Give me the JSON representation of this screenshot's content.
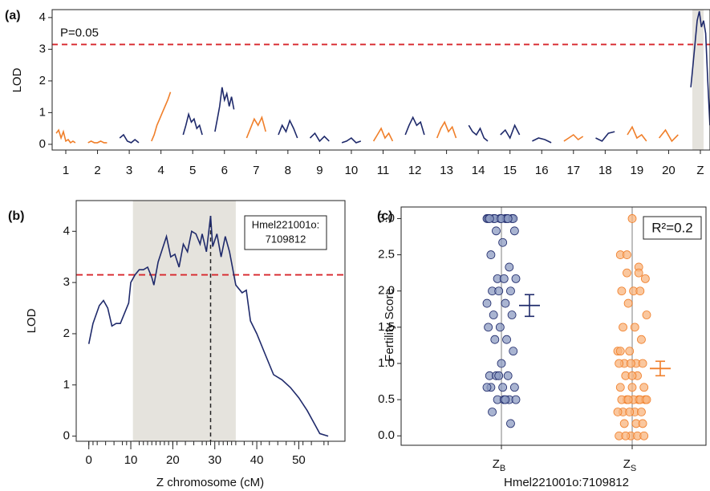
{
  "chart_data": [
    {
      "type": "genome-line",
      "panel": "(a)",
      "y_label": "LOD",
      "threshold": 3.15,
      "threshold_label": "P=0.05",
      "ylim": [
        -0.18,
        4.25
      ],
      "yticks": [
        0,
        1,
        2,
        3,
        4
      ],
      "chromosomes": [
        {
          "label": "1",
          "color": "#f07f2a",
          "values": [
            0.35,
            0.45,
            0.2,
            0.4,
            0.1,
            0.15,
            0.05,
            0.1,
            0.05
          ]
        },
        {
          "label": "2",
          "color": "#f07f2a",
          "values": [
            0.05,
            0.1,
            0.05,
            0.05,
            0.1,
            0.05,
            0.05
          ]
        },
        {
          "label": "3",
          "color": "#1f2a6b",
          "values": [
            0.2,
            0.3,
            0.1,
            0.05,
            0.15,
            0.05
          ]
        },
        {
          "label": "4",
          "color": "#f07f2a",
          "values": [
            0.1,
            0.3,
            0.6,
            0.8,
            1.0,
            1.2,
            1.4,
            1.65
          ]
        },
        {
          "label": "5",
          "color": "#1f2a6b",
          "values": [
            0.3,
            0.6,
            0.95,
            0.7,
            0.8,
            0.5,
            0.6,
            0.3
          ]
        },
        {
          "label": "6",
          "color": "#1f2a6b",
          "values": [
            0.4,
            0.8,
            1.2,
            1.8,
            1.4,
            1.6,
            1.2,
            1.5,
            1.1
          ]
        },
        {
          "label": "7",
          "color": "#f07f2a",
          "values": [
            0.2,
            0.5,
            0.8,
            0.6,
            0.85,
            0.4
          ]
        },
        {
          "label": "8",
          "color": "#1f2a6b",
          "values": [
            0.3,
            0.6,
            0.4,
            0.75,
            0.5,
            0.2
          ]
        },
        {
          "label": "9",
          "color": "#1f2a6b",
          "values": [
            0.2,
            0.35,
            0.1,
            0.25,
            0.1
          ]
        },
        {
          "label": "10",
          "color": "#1f2a6b",
          "values": [
            0.05,
            0.1,
            0.2,
            0.05,
            0.1
          ]
        },
        {
          "label": "11",
          "color": "#f07f2a",
          "values": [
            0.1,
            0.3,
            0.5,
            0.2,
            0.35,
            0.1
          ]
        },
        {
          "label": "12",
          "color": "#1f2a6b",
          "values": [
            0.3,
            0.6,
            0.85,
            0.6,
            0.7,
            0.3
          ]
        },
        {
          "label": "13",
          "color": "#f07f2a",
          "values": [
            0.2,
            0.5,
            0.7,
            0.4,
            0.55,
            0.2
          ]
        },
        {
          "label": "14",
          "color": "#1f2a6b",
          "values": [
            0.6,
            0.4,
            0.3,
            0.5,
            0.2,
            0.1
          ]
        },
        {
          "label": "15",
          "color": "#1f2a6b",
          "values": [
            0.3,
            0.45,
            0.2,
            0.6,
            0.3
          ]
        },
        {
          "label": "16",
          "color": "#1f2a6b",
          "values": [
            0.1,
            0.2,
            0.15,
            0.05
          ]
        },
        {
          "label": "17",
          "color": "#f07f2a",
          "values": [
            0.1,
            0.2,
            0.3,
            0.15,
            0.25
          ]
        },
        {
          "label": "18",
          "color": "#1f2a6b",
          "values": [
            0.2,
            0.1,
            0.35,
            0.4
          ]
        },
        {
          "label": "19",
          "color": "#f07f2a",
          "values": [
            0.3,
            0.55,
            0.2,
            0.3,
            0.1
          ]
        },
        {
          "label": "20",
          "color": "#f07f2a",
          "values": [
            0.2,
            0.45,
            0.1,
            0.3
          ]
        },
        {
          "label": "Z",
          "color": "#1f2a6b",
          "values": [
            1.8,
            2.5,
            3.2,
            3.9,
            4.2,
            3.7,
            3.9,
            3.5,
            2.0,
            0.6
          ]
        }
      ]
    },
    {
      "type": "line",
      "panel": "(b)",
      "x_label": "Z chromosome (cM)",
      "y_label": "LOD",
      "color": "#1f2a6b",
      "threshold": 3.15,
      "interval": [
        10.5,
        35
      ],
      "marker_x": 29,
      "marker_label": [
        "Hmel221001o:",
        "7109812"
      ],
      "xlim": [
        -3,
        61
      ],
      "xticks": [
        0,
        10,
        20,
        30,
        40,
        50
      ],
      "ylim": [
        -0.1,
        4.6
      ],
      "yticks": [
        0,
        1,
        2,
        3,
        4
      ],
      "rug": [
        0,
        1,
        2,
        4,
        6,
        8,
        9,
        10,
        12,
        13,
        14,
        15,
        16,
        17,
        18,
        19,
        20,
        21,
        23,
        25,
        27,
        28,
        29,
        31,
        32,
        33,
        34,
        35,
        37,
        39,
        41,
        43,
        45,
        47,
        49,
        51,
        53,
        56,
        57
      ],
      "x": [
        0,
        1,
        2.5,
        3.5,
        4.5,
        5.5,
        6.5,
        7.5,
        8.5,
        9.5,
        10,
        11,
        12,
        13,
        14,
        15,
        15.5,
        16.5,
        17.5,
        18.5,
        19.5,
        20.5,
        21.5,
        22.5,
        23.5,
        24.5,
        25.5,
        26.5,
        27,
        28,
        29,
        29.5,
        30.5,
        31.5,
        32.5,
        33.5,
        35,
        36.5,
        37.5,
        38.5,
        40,
        42,
        44,
        46,
        48,
        50,
        52,
        54,
        55,
        57
      ],
      "values": [
        1.8,
        2.2,
        2.55,
        2.65,
        2.5,
        2.15,
        2.2,
        2.2,
        2.4,
        2.6,
        3.0,
        3.15,
        3.25,
        3.25,
        3.3,
        3.1,
        2.95,
        3.4,
        3.65,
        3.9,
        3.5,
        3.55,
        3.3,
        3.75,
        3.6,
        4.0,
        3.95,
        3.75,
        3.95,
        3.6,
        4.3,
        3.7,
        3.95,
        3.5,
        3.9,
        3.6,
        2.95,
        2.8,
        2.85,
        2.25,
        2.0,
        1.6,
        1.2,
        1.1,
        0.95,
        0.75,
        0.5,
        0.2,
        0.05,
        0.0
      ]
    },
    {
      "type": "strip",
      "panel": "(c)",
      "x_label": "Hmel221001o:7109812",
      "y_label": "Fertility Score",
      "annotation": "R²=0.2",
      "ylim": [
        -0.13,
        3.16
      ],
      "yticks": [
        {
          "value": 0,
          "label": "0.0"
        },
        0.5,
        {
          "value": 1,
          "label": "1.0"
        },
        1.5,
        {
          "value": 2,
          "label": "2.0"
        },
        2.5,
        {
          "value": 3,
          "label": "3.0"
        }
      ],
      "groups": [
        {
          "category": {
            "main": "Z",
            "sub": "B"
          },
          "color": "#1f2a6b",
          "fill": "#8c9bc2",
          "mean": 1.8,
          "se": 0.15,
          "values": [
            3,
            3,
            3,
            3,
            3,
            3,
            3,
            3,
            3,
            3,
            3,
            3,
            2.83,
            2.83,
            2.67,
            2.5,
            2.33,
            2.17,
            2.17,
            2.17,
            2,
            2,
            2,
            1.83,
            1.83,
            1.67,
            1.67,
            1.5,
            1.5,
            1.33,
            1.33,
            1.17,
            1,
            0.83,
            0.83,
            0.83,
            0.67,
            0.67,
            0.67,
            0.5,
            0.5,
            0.5,
            0.5,
            0.33,
            0.17,
            0.83,
            0.67,
            0.5
          ]
        },
        {
          "category": {
            "main": "Z",
            "sub": "S"
          },
          "color": "#f07f2a",
          "fill": "#f8b47e",
          "mean": 0.93,
          "se": 0.1,
          "values": [
            3,
            2.5,
            2.33,
            2.25,
            2.17,
            2,
            2,
            2,
            1.83,
            1.67,
            1.5,
            1.5,
            1.33,
            1.17,
            1.17,
            1,
            1,
            1,
            1,
            1,
            0.83,
            0.83,
            0.67,
            0.67,
            0.67,
            0.5,
            0.5,
            0.5,
            0.5,
            0.5,
            0.5,
            0.5,
            0.5,
            0.33,
            0.33,
            0.33,
            0.33,
            0.33,
            0.17,
            0.17,
            0.17,
            0,
            0,
            0,
            0,
            0,
            0.83,
            1.17,
            2.25,
            2.5
          ]
        }
      ]
    }
  ]
}
